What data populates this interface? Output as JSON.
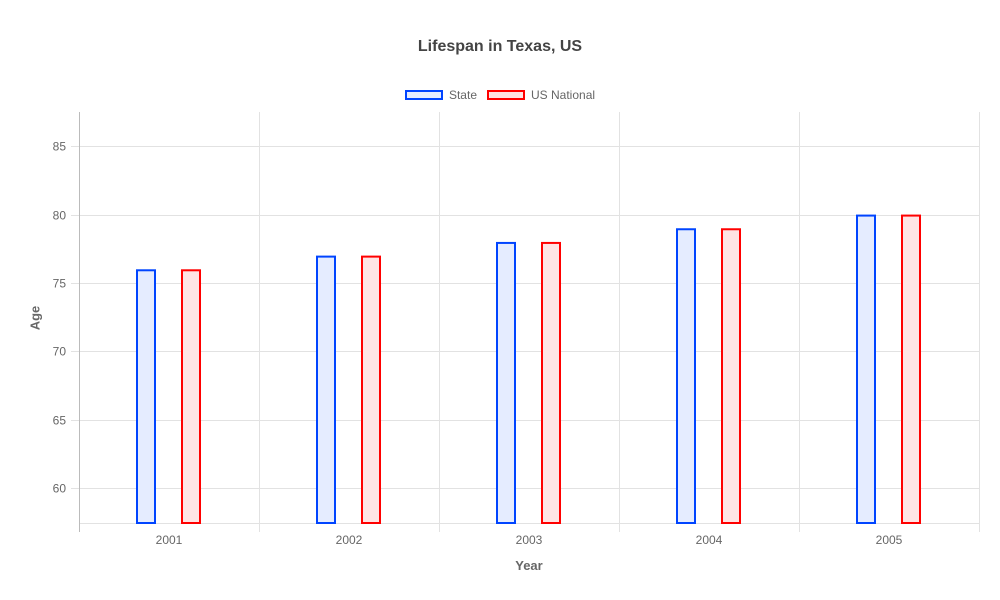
{
  "chart_data": {
    "type": "bar",
    "title": "Lifespan in Texas, US",
    "xlabel": "Year",
    "ylabel": "Age",
    "categories": [
      "2001",
      "2002",
      "2003",
      "2004",
      "2005"
    ],
    "series": [
      {
        "name": "State",
        "values": [
          76,
          77,
          78,
          79,
          80
        ],
        "border": "#0044ff",
        "fill": "#e5ecff"
      },
      {
        "name": "US National",
        "values": [
          76,
          77,
          78,
          79,
          80
        ],
        "border": "#ff0000",
        "fill": "#ffe4e4"
      }
    ],
    "yticks": [
      60,
      65,
      70,
      75,
      80,
      85
    ],
    "ylim": [
      57.45,
      87.5
    ],
    "grid": true,
    "legend_position": "top"
  }
}
